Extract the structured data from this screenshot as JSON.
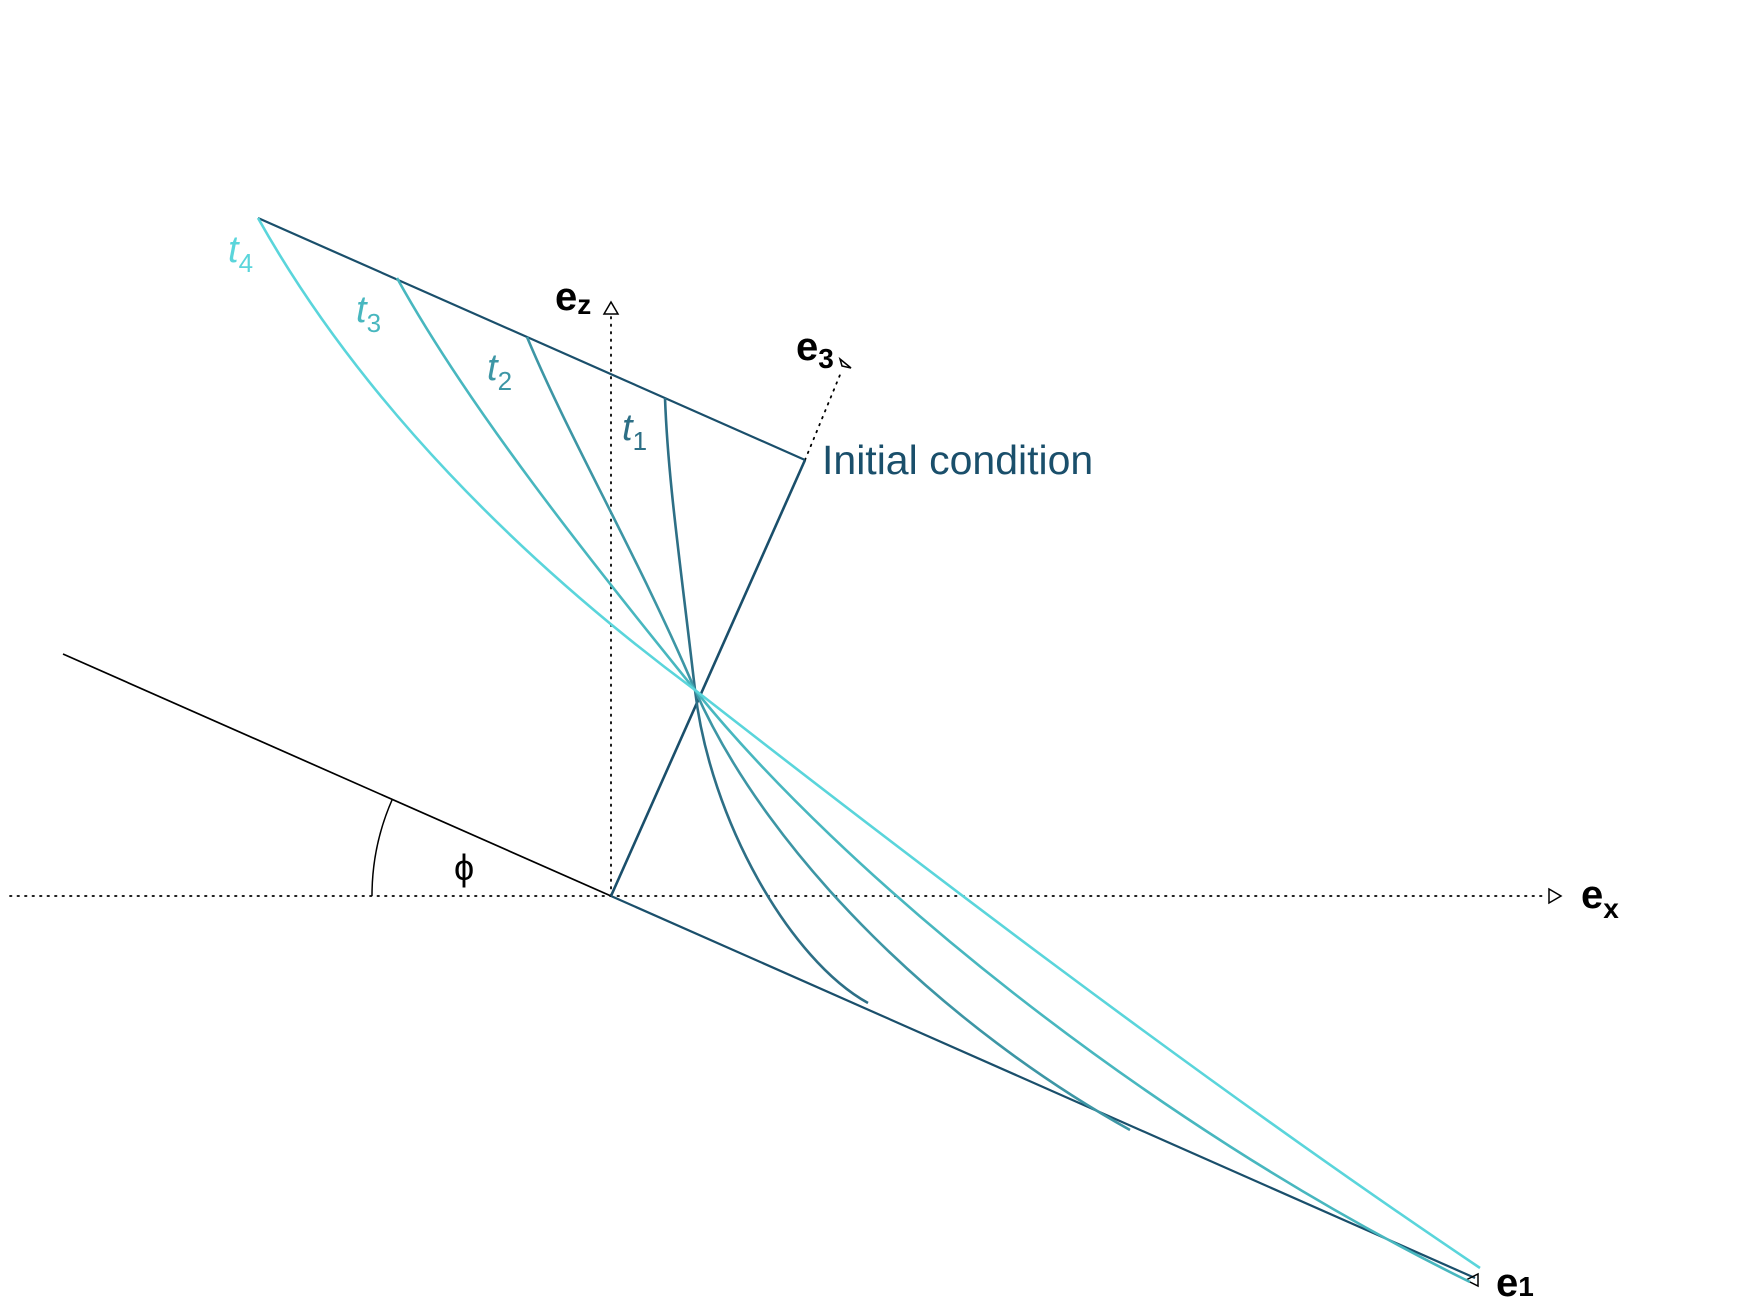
{
  "axes": {
    "ex": {
      "base": "e",
      "sub": "x"
    },
    "ez": {
      "base": "e",
      "sub": "z"
    },
    "e1": {
      "base": "e",
      "sub": "1"
    },
    "e3": {
      "base": "e",
      "sub": "3"
    }
  },
  "angle_label": "ϕ",
  "initial_condition_label": "Initial condition",
  "curves": [
    {
      "base": "t",
      "sub": "1",
      "color": "#2d6f86"
    },
    {
      "base": "t",
      "sub": "2",
      "color": "#3d96a5"
    },
    {
      "base": "t",
      "sub": "3",
      "color": "#48b7bf"
    },
    {
      "base": "t",
      "sub": "4",
      "color": "#5ad5db"
    }
  ],
  "colors": {
    "initial": "#1a4f6b",
    "axis": "#000000"
  }
}
